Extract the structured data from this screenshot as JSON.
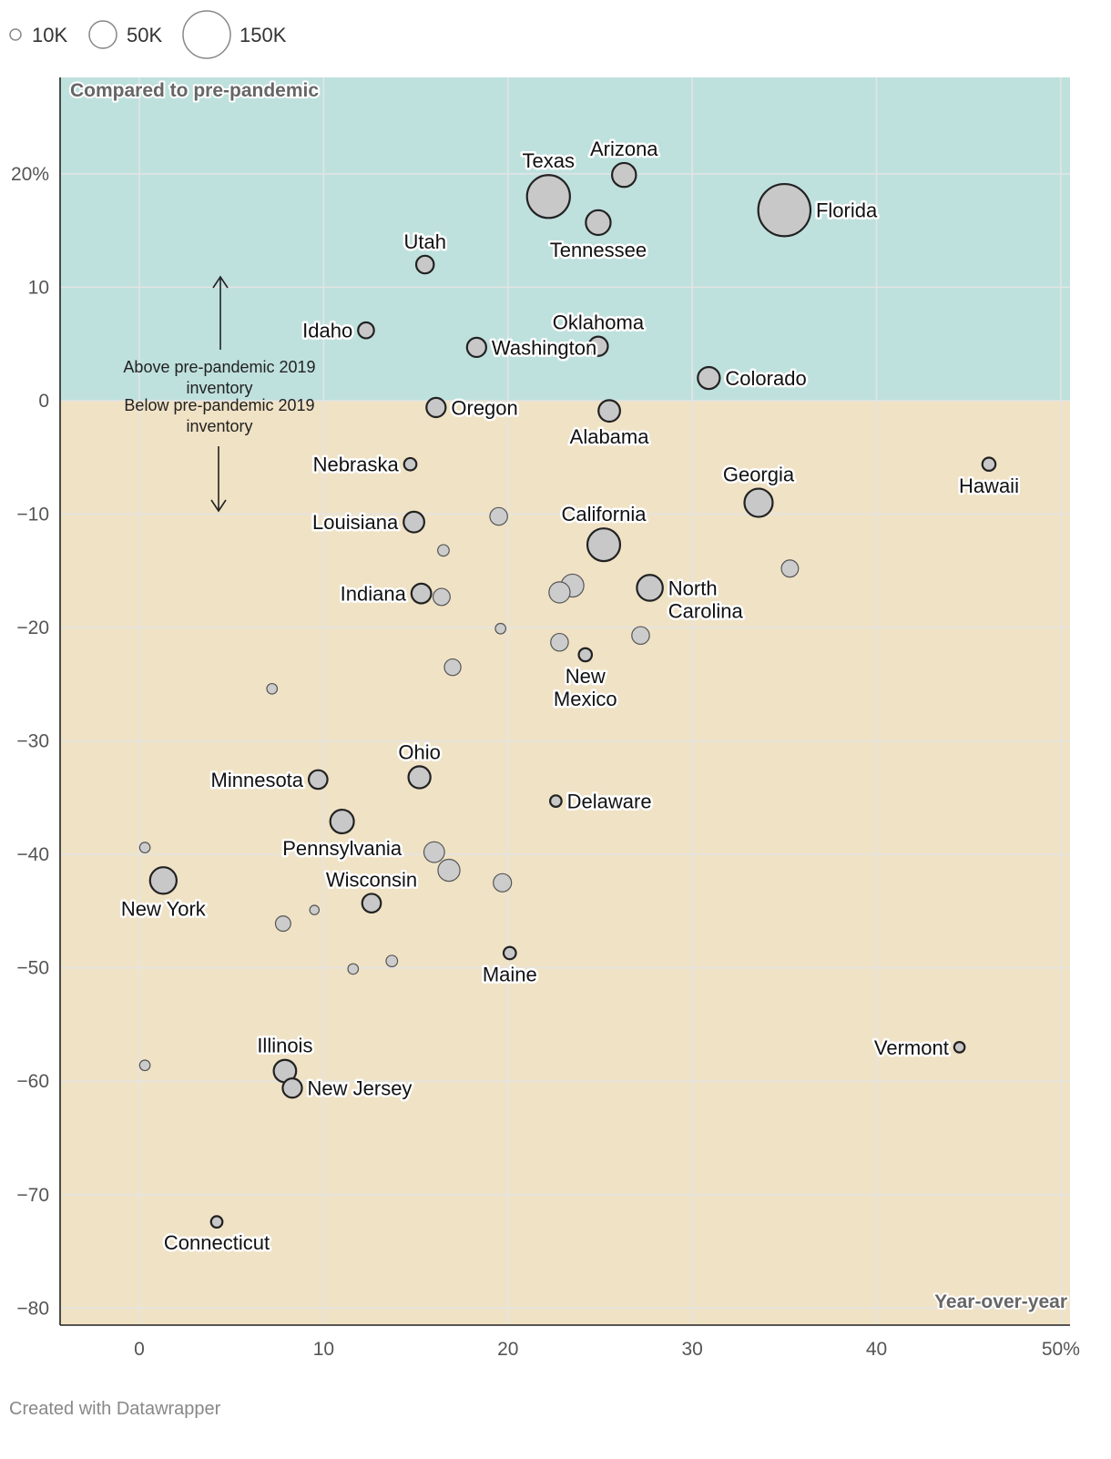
{
  "chart_data": {
    "type": "scatter",
    "xlabel": "Year-over-year",
    "ylabel": "Compared to pre-pandemic",
    "xlim": [
      -4.3,
      50.5
    ],
    "ylim": [
      -81.5,
      28.5
    ],
    "x_ticks": [
      "0",
      "10",
      "20",
      "30",
      "40",
      "50%"
    ],
    "x_tick_values": [
      0,
      10,
      20,
      30,
      40,
      50
    ],
    "y_ticks": [
      "20%",
      "10",
      "0",
      "−10",
      "−20",
      "−30",
      "−40",
      "−50",
      "−60",
      "−70",
      "−80"
    ],
    "y_tick_values": [
      20,
      10,
      0,
      -10,
      -20,
      -30,
      -40,
      -50,
      -60,
      -70,
      -80
    ],
    "bands": [
      {
        "name": "above",
        "from": 0,
        "to": 28.5,
        "color": "#bfe1de"
      },
      {
        "name": "below",
        "from": -81.5,
        "to": 0,
        "color": "#f0e2c5"
      }
    ],
    "size_legend": [
      {
        "label": "10K",
        "size": 10000
      },
      {
        "label": "50K",
        "size": 50000
      },
      {
        "label": "150K",
        "size": 150000
      }
    ],
    "annotation_above": "Above pre-pandemic 2019 inventory",
    "annotation_below": "Below pre-pandemic 2019 inventory",
    "labeled_points": [
      {
        "label": "Texas",
        "x": 22.2,
        "y": 18.0,
        "size": 98000,
        "label_pos": "top"
      },
      {
        "label": "Arizona",
        "x": 26.3,
        "y": 19.9,
        "size": 28000,
        "label_pos": "top"
      },
      {
        "label": "Florida",
        "x": 35.0,
        "y": 16.8,
        "size": 148000,
        "label_pos": "right"
      },
      {
        "label": "Tennessee",
        "x": 24.9,
        "y": 15.7,
        "size": 30000,
        "label_pos": "bottom"
      },
      {
        "label": "Utah",
        "x": 15.5,
        "y": 12.0,
        "size": 14000,
        "label_pos": "top"
      },
      {
        "label": "Idaho",
        "x": 12.3,
        "y": 6.2,
        "size": 11000,
        "label_pos": "left"
      },
      {
        "label": "Washington",
        "x": 18.3,
        "y": 4.7,
        "size": 17000,
        "label_pos": "right"
      },
      {
        "label": "Oklahoma",
        "x": 24.9,
        "y": 4.8,
        "size": 17000,
        "label_pos": "top"
      },
      {
        "label": "Colorado",
        "x": 30.9,
        "y": 2.0,
        "size": 23000,
        "label_pos": "right"
      },
      {
        "label": "Oregon",
        "x": 16.1,
        "y": -0.6,
        "size": 17000,
        "label_pos": "right"
      },
      {
        "label": "Alabama",
        "x": 25.5,
        "y": -0.9,
        "size": 22000,
        "label_pos": "bottom"
      },
      {
        "label": "Nebraska",
        "x": 14.7,
        "y": -5.6,
        "size": 6000,
        "label_pos": "left"
      },
      {
        "label": "Hawaii",
        "x": 46.1,
        "y": -5.6,
        "size": 7000,
        "label_pos": "bottom"
      },
      {
        "label": "Georgia",
        "x": 33.6,
        "y": -9.0,
        "size": 40000,
        "label_pos": "top"
      },
      {
        "label": "Louisiana",
        "x": 14.9,
        "y": -10.7,
        "size": 20000,
        "label_pos": "left"
      },
      {
        "label": "California",
        "x": 25.2,
        "y": -12.7,
        "size": 55000,
        "label_pos": "top"
      },
      {
        "label": "Indiana",
        "x": 15.3,
        "y": -17.0,
        "size": 18000,
        "label_pos": "left"
      },
      {
        "label": "North Carolina",
        "x": 27.7,
        "y": -16.5,
        "size": 33000,
        "label_pos": "right"
      },
      {
        "label": "New Mexico",
        "x": 24.2,
        "y": -22.4,
        "size": 7000,
        "label_pos": "bottom"
      },
      {
        "label": "Ohio",
        "x": 15.2,
        "y": -33.2,
        "size": 23000,
        "label_pos": "top"
      },
      {
        "label": "Minnesota",
        "x": 9.7,
        "y": -33.4,
        "size": 16000,
        "label_pos": "left"
      },
      {
        "label": "Delaware",
        "x": 22.6,
        "y": -35.3,
        "size": 5000,
        "label_pos": "right"
      },
      {
        "label": "Pennsylvania",
        "x": 11.0,
        "y": -37.1,
        "size": 27000,
        "label_pos": "bottom"
      },
      {
        "label": "New York",
        "x": 1.3,
        "y": -42.3,
        "size": 35000,
        "label_pos": "bottom"
      },
      {
        "label": "Wisconsin",
        "x": 12.6,
        "y": -44.3,
        "size": 16000,
        "label_pos": "top"
      },
      {
        "label": "Maine",
        "x": 20.1,
        "y": -48.7,
        "size": 6000,
        "label_pos": "bottom"
      },
      {
        "label": "Vermont",
        "x": 44.5,
        "y": -57.0,
        "size": 4000,
        "label_pos": "left"
      },
      {
        "label": "Illinois",
        "x": 7.9,
        "y": -59.1,
        "size": 24000,
        "label_pos": "top"
      },
      {
        "label": "New Jersey",
        "x": 8.3,
        "y": -60.6,
        "size": 17000,
        "label_pos": "right"
      },
      {
        "label": "Connecticut",
        "x": 4.2,
        "y": -72.4,
        "size": 5000,
        "label_pos": "bottom"
      }
    ],
    "unlabeled_points": [
      {
        "x": 19.5,
        "y": -10.2,
        "size": 14000
      },
      {
        "x": 16.5,
        "y": -13.2,
        "size": 5000
      },
      {
        "x": 35.3,
        "y": -14.8,
        "size": 13000
      },
      {
        "x": 23.5,
        "y": -16.3,
        "size": 25000
      },
      {
        "x": 22.8,
        "y": -16.9,
        "size": 21000
      },
      {
        "x": 16.4,
        "y": -17.3,
        "size": 13000
      },
      {
        "x": 19.6,
        "y": -20.1,
        "size": 4000
      },
      {
        "x": 27.2,
        "y": -20.7,
        "size": 14000
      },
      {
        "x": 22.8,
        "y": -21.3,
        "size": 14000
      },
      {
        "x": 17.0,
        "y": -23.5,
        "size": 12000
      },
      {
        "x": 7.2,
        "y": -25.4,
        "size": 4000
      },
      {
        "x": 0.3,
        "y": -39.4,
        "size": 4000
      },
      {
        "x": 16.0,
        "y": -39.8,
        "size": 20000
      },
      {
        "x": 16.8,
        "y": -41.4,
        "size": 23000
      },
      {
        "x": 19.7,
        "y": -42.5,
        "size": 15000
      },
      {
        "x": 9.5,
        "y": -44.9,
        "size": 3000
      },
      {
        "x": 7.8,
        "y": -46.1,
        "size": 10000
      },
      {
        "x": 13.7,
        "y": -49.4,
        "size": 5000
      },
      {
        "x": 11.6,
        "y": -50.1,
        "size": 4000
      },
      {
        "x": 0.3,
        "y": -58.6,
        "size": 4000
      }
    ]
  },
  "footer": {
    "credit": "Created with Datawrapper"
  },
  "colors": {
    "band_above": "#bfe1de",
    "band_below": "#f0e2c5",
    "dot_fill": "#c8c8c8",
    "dot_stroke": "#222222",
    "grid": "#e4e4e4"
  }
}
